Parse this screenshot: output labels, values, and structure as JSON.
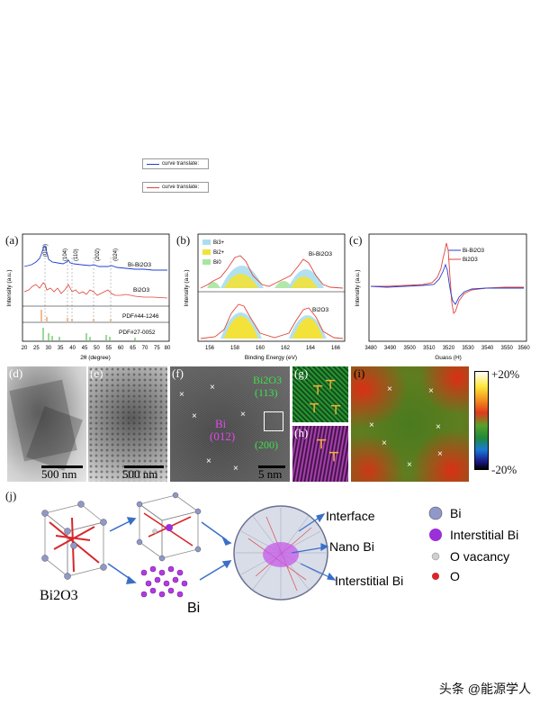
{
  "legend_top": [
    {
      "label": "curve translate:",
      "color": "#1f3fd1"
    },
    {
      "label": "curve translate:",
      "color": "#e0453a"
    }
  ],
  "panel_a": {
    "letter": "(a)",
    "ylabel": "Intensity (a.u.)",
    "xlabel": "2θ (degree)",
    "xticks": [
      "20",
      "25",
      "30",
      "35",
      "40",
      "45",
      "50",
      "55",
      "60",
      "65",
      "70",
      "75",
      "80"
    ],
    "peaks": [
      "(012)",
      "(104)",
      "(110)",
      "(202)",
      "(024)"
    ],
    "series": [
      "Bi-Bi2O3",
      "Bi2O3"
    ],
    "refs": [
      "PDF#44-1246",
      "PDF#27-0052"
    ],
    "colors": {
      "bibi2o3": "#1f3fd1",
      "bi2o3": "#e0453a",
      "ref1": "#e07a2a",
      "ref2": "#35b535"
    }
  },
  "panel_b": {
    "letter": "(b)",
    "ylabel": "Intensity (a.u.)",
    "xlabel": "Binding Energy (eV)",
    "xticks": [
      "156",
      "158",
      "160",
      "162",
      "164",
      "166"
    ],
    "legend": [
      "Bi3+",
      "Bi2+",
      "Bi0"
    ],
    "legend_colors": [
      "#a8def0",
      "#f2e23a",
      "#a8e6a0"
    ],
    "labels": [
      "Bi-Bi2O3",
      "Bi2O3"
    ]
  },
  "panel_c": {
    "letter": "(c)",
    "ylabel": "Intensity (a.u.)",
    "xlabel": "Guass (H)",
    "xticks": [
      "3480",
      "3490",
      "3500",
      "3510",
      "3520",
      "3530",
      "3540",
      "3550",
      "3560"
    ],
    "series": [
      "Bi-Bi2O3",
      "Bi2O3"
    ],
    "colors": [
      "#2b3fd1",
      "#e0453a"
    ]
  },
  "micrographs": {
    "d": {
      "letter": "(d)",
      "scale": "500 nm"
    },
    "e": {
      "letter": "(e)",
      "scale": "500 nm"
    },
    "f": {
      "letter": "(f)",
      "scale": "5 nm",
      "bi_label": "Bi",
      "bi_plane": "(012)",
      "ox_label": "Bi2O3",
      "ox_plane1": "(113)",
      "ox_plane2": "(200)"
    },
    "g": {
      "letter": "(g)"
    },
    "h": {
      "letter": "(h)"
    },
    "i": {
      "letter": "(i)"
    }
  },
  "colorbar": {
    "top": "+20%",
    "bottom": "-20%"
  },
  "panel_j": {
    "letter": "(j)",
    "bi2o3_label": "Bi2O3",
    "bi_label": "Bi",
    "callouts": [
      "Interface",
      "Nano Bi",
      "Interstitial Bi"
    ],
    "legend": [
      {
        "label": "Bi",
        "color": "#8f98c8"
      },
      {
        "label": "Interstitial Bi",
        "color": "#9b2fd8"
      },
      {
        "label": "O vacancy",
        "color": "#cfcfcf"
      },
      {
        "label": "O",
        "color": "#d8262a"
      }
    ]
  },
  "watermark": "头条 @能源学人"
}
